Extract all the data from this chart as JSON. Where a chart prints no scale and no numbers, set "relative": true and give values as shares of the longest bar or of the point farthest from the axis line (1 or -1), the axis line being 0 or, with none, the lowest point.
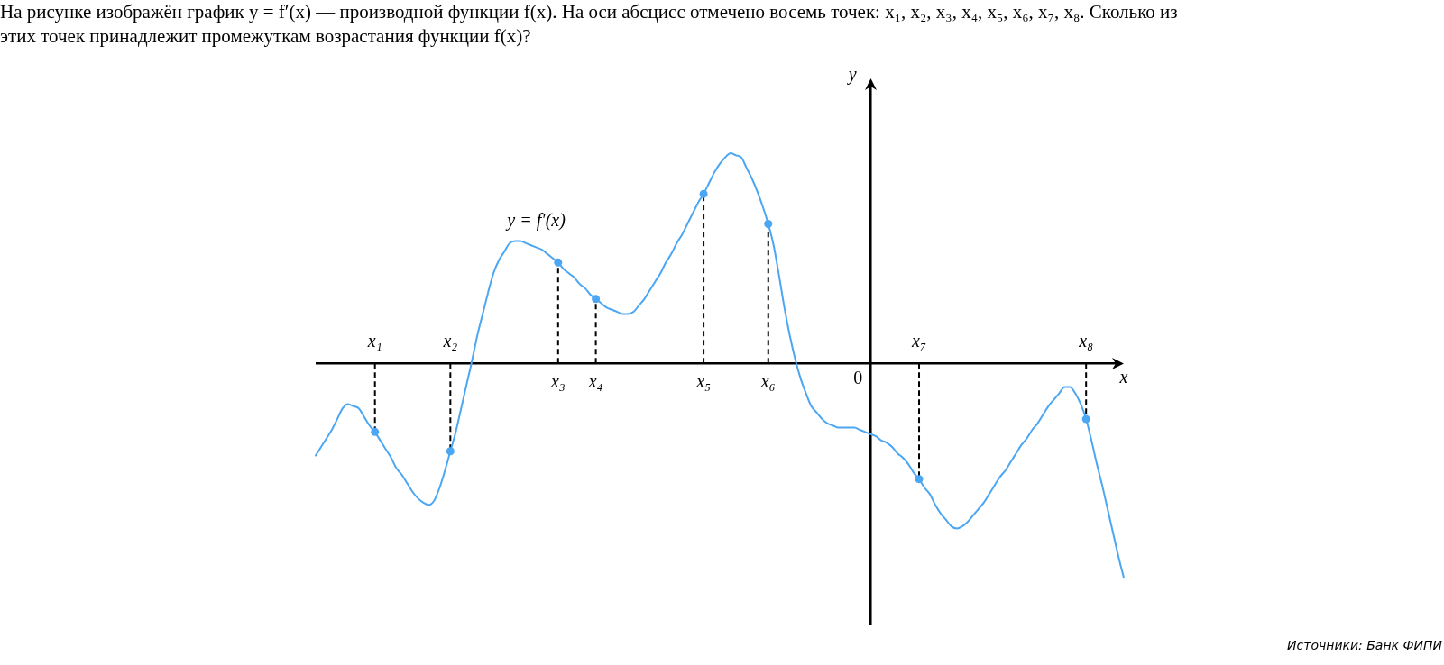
{
  "chart_data": {
    "type": "line",
    "title": "На рисунке изображён график y = f′(x) — производной функции f(x). На оси абсцисс отмечено восемь точек: x₁, x₂, x₃, x₄, x₅, x₆, x₇, x₈. Сколько из этих точек принадлежит промежуткам возрастания функции f(x)?",
    "annotations": [
      "Источники: Банк ФИПИ"
    ],
    "xlabel": "x",
    "ylabel": "y",
    "relative": true,
    "tick_labels": "x",
    "categories": [
      null,
      null,
      null,
      null,
      null,
      null,
      null,
      null,
      null,
      null,
      null,
      "x₁",
      null,
      null,
      null,
      null,
      null,
      null,
      null,
      null,
      null,
      null,
      null,
      null,
      null,
      "x₂",
      null,
      null,
      null,
      null,
      null,
      null,
      null,
      null,
      null,
      null,
      null,
      null,
      null,
      null,
      null,
      null,
      null,
      null,
      null,
      "x₃",
      null,
      null,
      null,
      null,
      null,
      null,
      "x₄",
      null,
      null,
      null,
      null,
      null,
      null,
      null,
      null,
      null,
      null,
      null,
      null,
      null,
      null,
      null,
      null,
      null,
      null,
      null,
      "x₅",
      null,
      null,
      null,
      null,
      null,
      null,
      null,
      null,
      null,
      null,
      null,
      "x₆",
      null,
      null,
      null,
      null,
      null,
      null,
      null,
      null,
      null,
      null,
      null,
      null,
      null,
      null,
      null,
      null,
      null,
      null,
      "0",
      null,
      null,
      null,
      null,
      null,
      null,
      null,
      null,
      "x₇",
      null,
      null,
      null,
      null,
      null,
      null,
      null,
      null,
      null,
      null,
      null,
      null,
      null,
      null,
      null,
      null,
      null,
      null,
      null,
      null,
      null,
      null,
      null,
      null,
      null,
      null,
      null,
      null,
      null,
      null,
      "x₈",
      null,
      null,
      null,
      null,
      null,
      null,
      null
    ],
    "series": [
      {
        "name": "y = f′(x)",
        "color": "#4ba6f3",
        "values": [
          -0.43,
          -0.39,
          -0.35,
          -0.31,
          -0.26,
          -0.21,
          -0.19,
          -0.2,
          -0.21,
          -0.25,
          -0.29,
          -0.32,
          -0.36,
          -0.4,
          -0.44,
          -0.49,
          -0.52,
          -0.56,
          -0.6,
          -0.63,
          -0.65,
          -0.66,
          -0.64,
          -0.58,
          -0.5,
          -0.41,
          -0.32,
          -0.21,
          -0.1,
          0.01,
          0.13,
          0.23,
          0.33,
          0.42,
          0.48,
          0.52,
          0.56,
          0.57,
          0.57,
          0.56,
          0.55,
          0.54,
          0.53,
          0.51,
          0.49,
          0.47,
          0.44,
          0.42,
          0.4,
          0.37,
          0.35,
          0.32,
          0.3,
          0.28,
          0.26,
          0.25,
          0.24,
          0.23,
          0.23,
          0.24,
          0.27,
          0.3,
          0.34,
          0.38,
          0.42,
          0.47,
          0.51,
          0.56,
          0.6,
          0.65,
          0.7,
          0.75,
          0.79,
          0.84,
          0.89,
          0.93,
          0.96,
          0.98,
          0.97,
          0.96,
          0.91,
          0.86,
          0.8,
          0.73,
          0.65,
          0.55,
          0.41,
          0.26,
          0.13,
          0.02,
          -0.07,
          -0.14,
          -0.2,
          -0.23,
          -0.26,
          -0.28,
          -0.29,
          -0.3,
          -0.3,
          -0.3,
          -0.3,
          -0.31,
          -0.32,
          -0.33,
          -0.34,
          -0.36,
          -0.37,
          -0.39,
          -0.42,
          -0.44,
          -0.47,
          -0.51,
          -0.54,
          -0.58,
          -0.61,
          -0.66,
          -0.7,
          -0.73,
          -0.76,
          -0.77,
          -0.76,
          -0.74,
          -0.71,
          -0.68,
          -0.65,
          -0.61,
          -0.57,
          -0.53,
          -0.5,
          -0.46,
          -0.42,
          -0.38,
          -0.35,
          -0.31,
          -0.28,
          -0.24,
          -0.2,
          -0.17,
          -0.14,
          -0.11,
          -0.11,
          -0.14,
          -0.19,
          -0.26,
          -0.36,
          -0.47,
          -0.57,
          -0.68,
          -0.79,
          -0.9,
          -1
        ]
      },
      {
        "type": "lollipop",
        "color": "#4ba6f3",
        "marker": "circle",
        "line_style": "dashed",
        "values": [
          null,
          null,
          null,
          null,
          null,
          null,
          null,
          null,
          null,
          null,
          null,
          -0.32,
          null,
          null,
          null,
          null,
          null,
          null,
          null,
          null,
          null,
          null,
          null,
          null,
          null,
          -0.41,
          null,
          null,
          null,
          null,
          null,
          null,
          null,
          null,
          null,
          null,
          null,
          null,
          null,
          null,
          null,
          null,
          null,
          null,
          null,
          0.47,
          null,
          null,
          null,
          null,
          null,
          null,
          0.3,
          null,
          null,
          null,
          null,
          null,
          null,
          null,
          null,
          null,
          null,
          null,
          null,
          null,
          null,
          null,
          null,
          null,
          null,
          null,
          0.79,
          null,
          null,
          null,
          null,
          null,
          null,
          null,
          null,
          null,
          null,
          null,
          0.65,
          null,
          null,
          null,
          null,
          null,
          null,
          null,
          null,
          null,
          null,
          null,
          null,
          null,
          null,
          null,
          null,
          null,
          null,
          null,
          null,
          null,
          null,
          null,
          null,
          null,
          null,
          null,
          -0.54,
          null,
          null,
          null,
          null,
          null,
          null,
          null,
          null,
          null,
          null,
          null,
          null,
          null,
          null,
          null,
          null,
          null,
          null,
          null,
          null,
          null,
          null,
          null,
          null,
          null,
          null,
          null,
          null,
          null,
          null,
          -0.26,
          null,
          null,
          null,
          null,
          null,
          null,
          null
        ]
      }
    ]
  }
}
